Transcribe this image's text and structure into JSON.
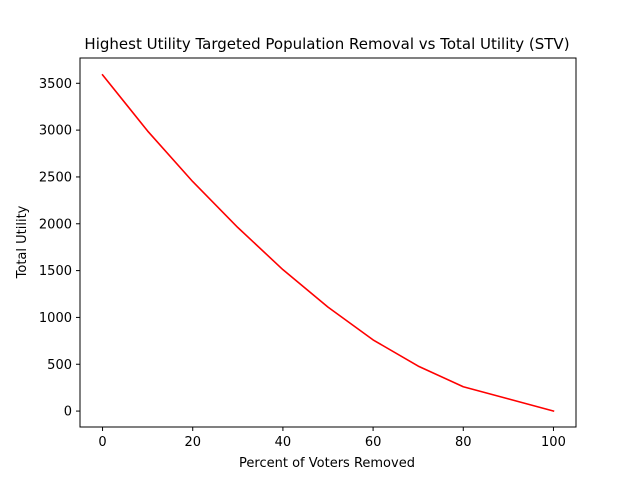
{
  "chart_data": {
    "type": "line",
    "title": "Highest Utility Targeted Population Removal vs Total Utility (STV)",
    "xlabel": "Percent of Voters Removed",
    "ylabel": "Total Utility",
    "xlim": [
      -5,
      105
    ],
    "ylim": [
      -170,
      3770
    ],
    "xticks": [
      0,
      20,
      40,
      60,
      80,
      100
    ],
    "yticks": [
      0,
      500,
      1000,
      1500,
      2000,
      2500,
      3000,
      3500
    ],
    "grid": false,
    "legend": "none",
    "series": [
      {
        "color": "#ff0000",
        "x": [
          0,
          10,
          20,
          30,
          40,
          50,
          60,
          70,
          80,
          90,
          100
        ],
        "y": [
          3590,
          2990,
          2450,
          1960,
          1510,
          1110,
          760,
          480,
          260,
          130,
          0
        ]
      }
    ]
  }
}
